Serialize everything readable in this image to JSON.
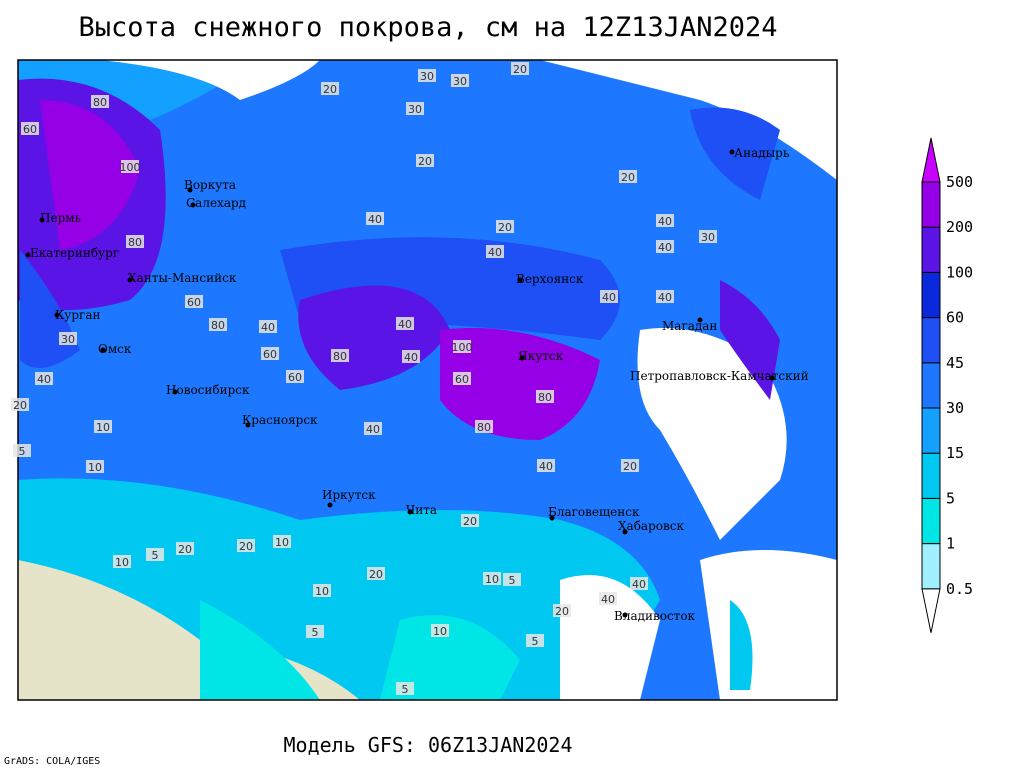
{
  "header": {
    "title": "Высота снежного покрова, см на 12Z13JAN2024"
  },
  "footer": {
    "model": "Модель GFS: 06Z13JAN2024",
    "credit": "GrADS: COLA/IGES"
  },
  "colorbar": {
    "levels": [
      "0.5",
      "1",
      "5",
      "15",
      "30",
      "45",
      "60",
      "100",
      "200",
      "500"
    ],
    "colors": [
      "#ffffff",
      "#a0f0ff",
      "#00e6e6",
      "#00c8f0",
      "#14a0ff",
      "#1e78ff",
      "#1e50f5",
      "#0a28dc",
      "#5a14e6",
      "#9600e6",
      "#c800ff"
    ]
  },
  "cities": [
    "Анадырь",
    "Верхоянск",
    "Магадан",
    "Якутск",
    "Петропавловск-Камчатский",
    "Благовещенск",
    "Хабаровск",
    "Владивосток",
    "Чита",
    "Иркутск",
    "Красноярск",
    "Новосибирск",
    "Омск",
    "Курган",
    "Екатеринбург",
    "Пермь",
    "Ханты-Мансийск",
    "Воркута",
    "Салехард"
  ],
  "contour_labels": [
    "30",
    "30",
    "20",
    "20",
    "30",
    "20",
    "40",
    "20",
    "40",
    "20",
    "40",
    "40",
    "40",
    "40",
    "30",
    "40",
    "100",
    "80",
    "60",
    "80",
    "100",
    "60",
    "80",
    "80",
    "40",
    "60",
    "80",
    "60",
    "40",
    "40",
    "30",
    "20",
    "10",
    "5",
    "10",
    "20",
    "20",
    "10",
    "5",
    "10",
    "5",
    "20",
    "20",
    "40",
    "40",
    "10",
    "5",
    "10",
    "20",
    "5",
    "10",
    "40",
    "60",
    "80",
    "40",
    "20",
    "5"
  ]
}
